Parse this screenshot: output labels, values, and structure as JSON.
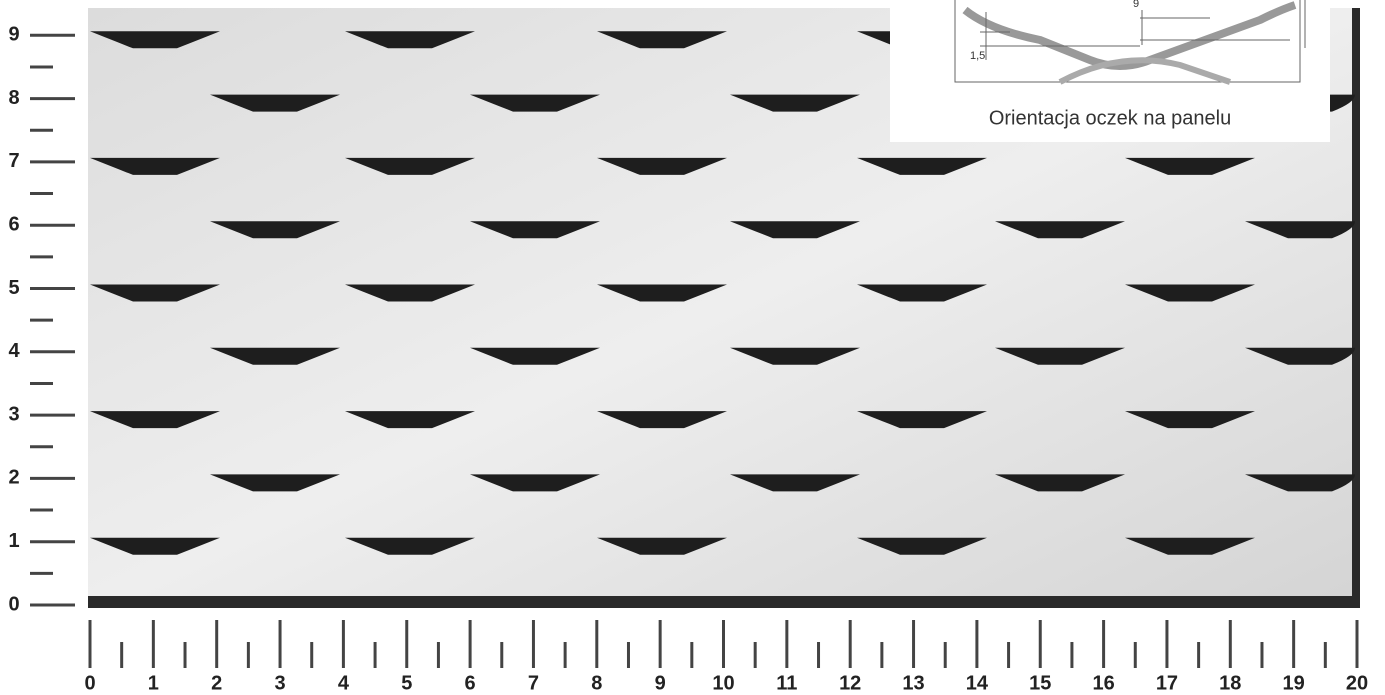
{
  "left_ruler": {
    "labels": [
      "0",
      "1",
      "2",
      "3",
      "4",
      "5",
      "6",
      "7",
      "8",
      "9"
    ]
  },
  "bottom_ruler": {
    "labels": [
      "0",
      "1",
      "2",
      "3",
      "4",
      "5",
      "6",
      "7",
      "8",
      "9",
      "10",
      "11",
      "12",
      "13",
      "14",
      "15",
      "16",
      "17",
      "18",
      "19",
      "20"
    ]
  },
  "inset": {
    "dimension_a": "9",
    "dimension_b": "1,5",
    "caption": "Orientacja oczek na panelu"
  }
}
